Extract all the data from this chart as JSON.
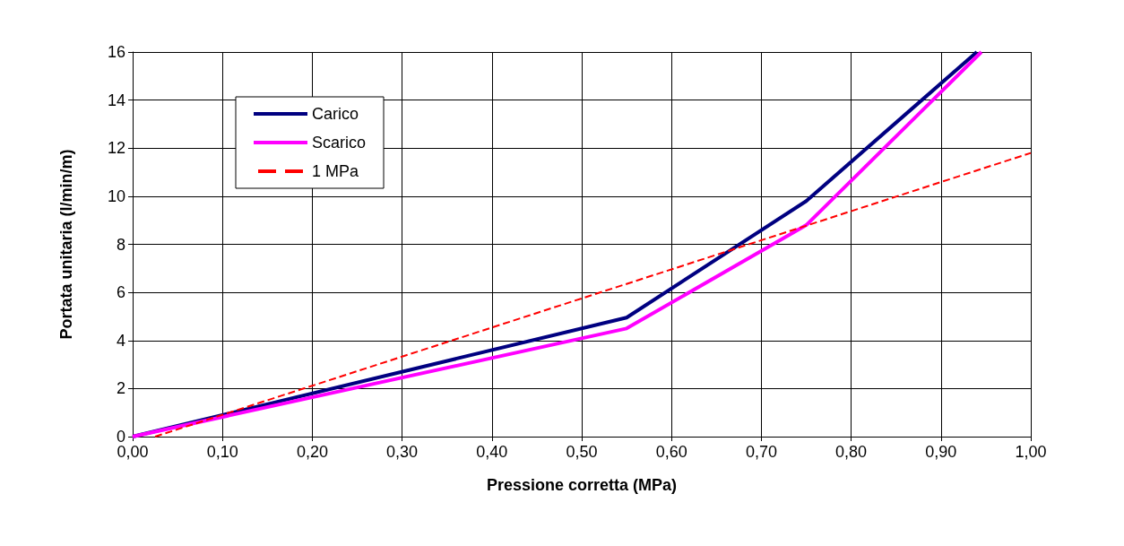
{
  "chart_data": {
    "type": "line",
    "xlabel": "Pressione corretta (MPa)",
    "ylabel": "Portata unitaria (l/min/m)",
    "series": [
      {
        "name": "Carico",
        "color": "#000080",
        "x": [
          0,
          0.55,
          0.75,
          0.94
        ],
        "values": [
          0,
          4.95,
          9.8,
          16
        ],
        "line_style": "solid"
      },
      {
        "name": "Scarico",
        "color": "#ff00ff",
        "x": [
          0,
          0.55,
          0.75,
          0.945
        ],
        "values": [
          0,
          4.5,
          8.8,
          16
        ],
        "line_style": "solid"
      },
      {
        "name": "1 MPa",
        "color": "#ff0000",
        "x": [
          0.025,
          1.0
        ],
        "values": [
          0,
          11.8
        ],
        "line_style": "dashed"
      }
    ],
    "xlim": [
      0,
      1
    ],
    "xticks": [
      {
        "value": 0,
        "label": "0,00"
      },
      {
        "value": 0.1,
        "label": "0,10"
      },
      {
        "value": 0.2,
        "label": "0,20"
      },
      {
        "value": 0.3,
        "label": "0,30"
      },
      {
        "value": 0.4,
        "label": "0,40"
      },
      {
        "value": 0.5,
        "label": "0,50"
      },
      {
        "value": 0.6,
        "label": "0,60"
      },
      {
        "value": 0.7,
        "label": "0,70"
      },
      {
        "value": 0.8,
        "label": "0,80"
      },
      {
        "value": 0.9,
        "label": "0,90"
      },
      {
        "value": 1,
        "label": "1,00"
      }
    ],
    "ylim": [
      0,
      16
    ],
    "yticks": [
      0,
      2,
      4,
      6,
      8,
      10,
      12,
      14,
      16
    ],
    "grid": true,
    "legend": "top left",
    "marker": "none"
  }
}
